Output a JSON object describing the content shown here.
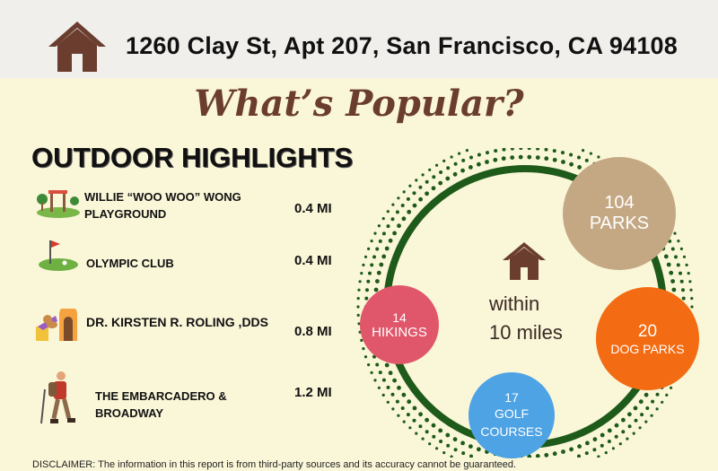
{
  "header": {
    "address": "1260 Clay St, Apt 207, San Francisco, CA 94108",
    "icon": "house-icon",
    "house_color": "#6b3d2e"
  },
  "title": "What’s Popular?",
  "section_title": "OUTDOOR HIGHLIGHTS",
  "highlights": [
    {
      "name": "WILLIE “WOO WOO” WONG PLAYGROUND",
      "distance": "0.4 MI",
      "icon": "playground-icon"
    },
    {
      "name": "OLYMPIC CLUB",
      "distance": "0.4 MI",
      "icon": "golf-icon"
    },
    {
      "name": "DR. KIRSTEN R. ROLING ,DDS",
      "distance": "0.8 MI",
      "icon": "dog-park-icon"
    },
    {
      "name": "THE EMBARCADERO & BROADWAY",
      "distance": "1.2 MI",
      "icon": "hiker-icon"
    }
  ],
  "summary": {
    "center_text_line1": "within",
    "center_text_line2": "10 miles",
    "center_icon": "house-icon",
    "bubbles": [
      {
        "number": "104",
        "label": "PARKS",
        "color": "#c4a883"
      },
      {
        "number": "20",
        "label": "DOG PARKS",
        "color": "#f36b12"
      },
      {
        "number": "17",
        "label": "GOLF COURSES",
        "color": "#4ea3e4"
      },
      {
        "number": "14",
        "label": "HIKINGS",
        "color": "#e0566a"
      }
    ],
    "ring_color": "#1e5a1a"
  },
  "disclaimer": "DISCLAIMER: The information in this report is from third-party sources and its accuracy cannot be guaranteed."
}
